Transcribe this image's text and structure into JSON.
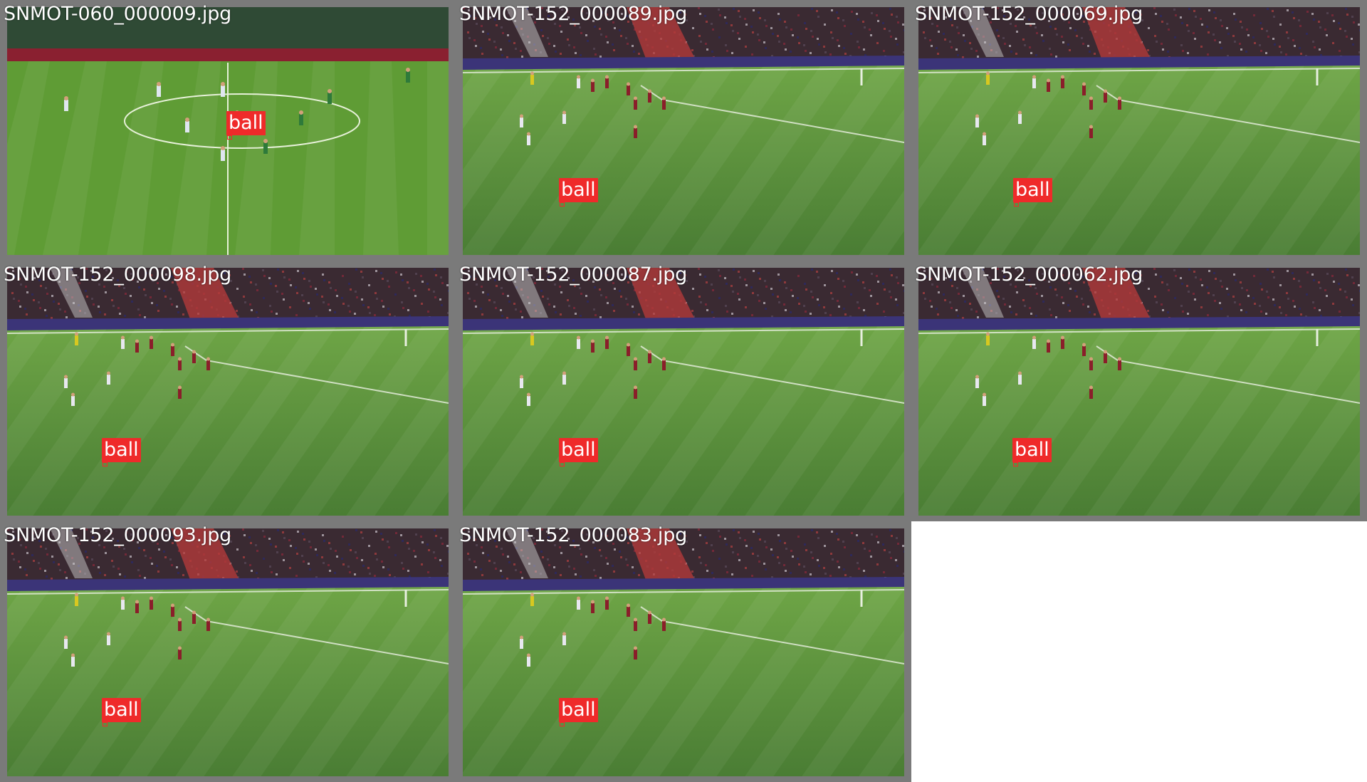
{
  "colors": {
    "tile_border": "#7a7a7a",
    "label_bg": "#ef2a2a",
    "label_text": "#ffffff",
    "crowd": "#3a2a32",
    "grass_dark": "#4a7d34",
    "grass_light": "#6ea546"
  },
  "tiles": [
    {
      "filename": "SNMOT-060_000009.jpg",
      "detections": [
        {
          "label": "ball"
        }
      ],
      "scene": "center-field"
    },
    {
      "filename": "SNMOT-152_000089.jpg",
      "detections": [
        {
          "label": "ball"
        }
      ],
      "scene": "stadium"
    },
    {
      "filename": "SNMOT-152_000069.jpg",
      "detections": [
        {
          "label": "ball"
        }
      ],
      "scene": "stadium"
    },
    {
      "filename": "SNMOT-152_000098.jpg",
      "detections": [
        {
          "label": "ball"
        }
      ],
      "scene": "stadium"
    },
    {
      "filename": "SNMOT-152_000087.jpg",
      "detections": [
        {
          "label": "ball"
        }
      ],
      "scene": "stadium"
    },
    {
      "filename": "SNMOT-152_000062.jpg",
      "detections": [
        {
          "label": "ball"
        }
      ],
      "scene": "stadium"
    },
    {
      "filename": "SNMOT-152_000093.jpg",
      "detections": [
        {
          "label": "ball"
        }
      ],
      "scene": "stadium"
    },
    {
      "filename": "SNMOT-152_000083.jpg",
      "detections": [
        {
          "label": "ball"
        }
      ],
      "scene": "stadium"
    }
  ]
}
